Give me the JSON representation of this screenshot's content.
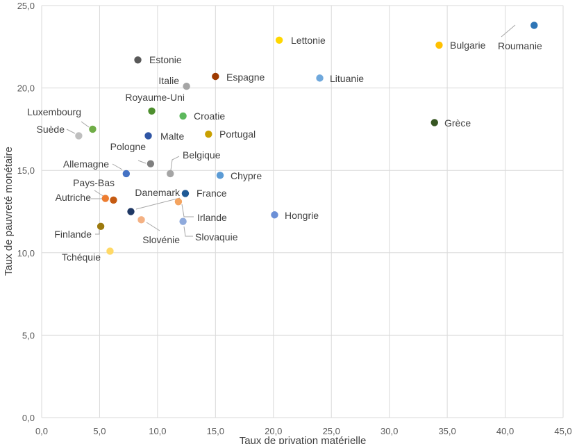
{
  "chart_data": {
    "type": "scatter",
    "title": "",
    "xlabel": "Taux de privation matérielle",
    "ylabel": "Taux de pauvreté monétaire",
    "xlim": [
      0,
      45
    ],
    "ylim": [
      0,
      25
    ],
    "xticks": [
      "0,0",
      "5,0",
      "10,0",
      "15,0",
      "20,0",
      "25,0",
      "30,0",
      "35,0",
      "40,0",
      "45,0"
    ],
    "yticks": [
      "0,0",
      "5,0",
      "10,0",
      "15,0",
      "20,0",
      "25,0"
    ],
    "grid": true,
    "points": [
      {
        "name": "Roumanie",
        "x": 42.5,
        "y": 23.8,
        "color": "#2e75b6"
      },
      {
        "name": "Bulgarie",
        "x": 34.3,
        "y": 22.6,
        "color": "#ffc000"
      },
      {
        "name": "Grèce",
        "x": 33.9,
        "y": 17.9,
        "color": "#375623"
      },
      {
        "name": "Lettonie",
        "x": 20.5,
        "y": 22.9,
        "color": "#ffd700"
      },
      {
        "name": "Lituanie",
        "x": 24.0,
        "y": 20.6,
        "color": "#6fa8dc"
      },
      {
        "name": "Hongrie",
        "x": 20.1,
        "y": 12.3,
        "color": "#6b8fd6"
      },
      {
        "name": "Estonie",
        "x": 8.3,
        "y": 21.7,
        "color": "#595959"
      },
      {
        "name": "Espagne",
        "x": 15.0,
        "y": 20.7,
        "color": "#9e3a00"
      },
      {
        "name": "Italie",
        "x": 12.5,
        "y": 20.1,
        "color": "#a5a5a5"
      },
      {
        "name": "Royaume-Uni",
        "x": 9.5,
        "y": 18.6,
        "color": "#4e8f2e"
      },
      {
        "name": "Croatie",
        "x": 12.2,
        "y": 18.3,
        "color": "#5cb85c"
      },
      {
        "name": "Portugal",
        "x": 14.4,
        "y": 17.2,
        "color": "#c9a000"
      },
      {
        "name": "Malte",
        "x": 9.2,
        "y": 17.1,
        "color": "#2f55a4"
      },
      {
        "name": "Luxembourg",
        "x": 4.4,
        "y": 17.5,
        "color": "#70ad47"
      },
      {
        "name": "Suède",
        "x": 3.2,
        "y": 17.1,
        "color": "#bfbfbf"
      },
      {
        "name": "Pologne",
        "x": 9.4,
        "y": 15.4,
        "color": "#7f7f7f"
      },
      {
        "name": "Belgique",
        "x": 11.1,
        "y": 14.8,
        "color": "#a5a5a5"
      },
      {
        "name": "Allemagne",
        "x": 7.3,
        "y": 14.8,
        "color": "#4472c4"
      },
      {
        "name": "Chypre",
        "x": 15.4,
        "y": 14.7,
        "color": "#5b9bd5"
      },
      {
        "name": "France",
        "x": 12.4,
        "y": 13.6,
        "color": "#1f5a96"
      },
      {
        "name": "Pays-Bas",
        "x": 6.2,
        "y": 13.2,
        "color": "#c55a11"
      },
      {
        "name": "Autriche",
        "x": 5.5,
        "y": 13.3,
        "color": "#ed7d31"
      },
      {
        "name": "Irlande",
        "x": 11.8,
        "y": 13.1,
        "color": "#f4a460"
      },
      {
        "name": "Danemark",
        "x": 7.7,
        "y": 12.5,
        "color": "#1f3864"
      },
      {
        "name": "Slovénie",
        "x": 8.6,
        "y": 12.0,
        "color": "#f4b183"
      },
      {
        "name": "Slovaquie",
        "x": 12.2,
        "y": 11.9,
        "color": "#8faadc"
      },
      {
        "name": "Finlande",
        "x": 5.1,
        "y": 11.6,
        "color": "#9c7a0e"
      },
      {
        "name": "Tchéquie",
        "x": 5.9,
        "y": 10.1,
        "color": "#ffd966"
      }
    ]
  }
}
